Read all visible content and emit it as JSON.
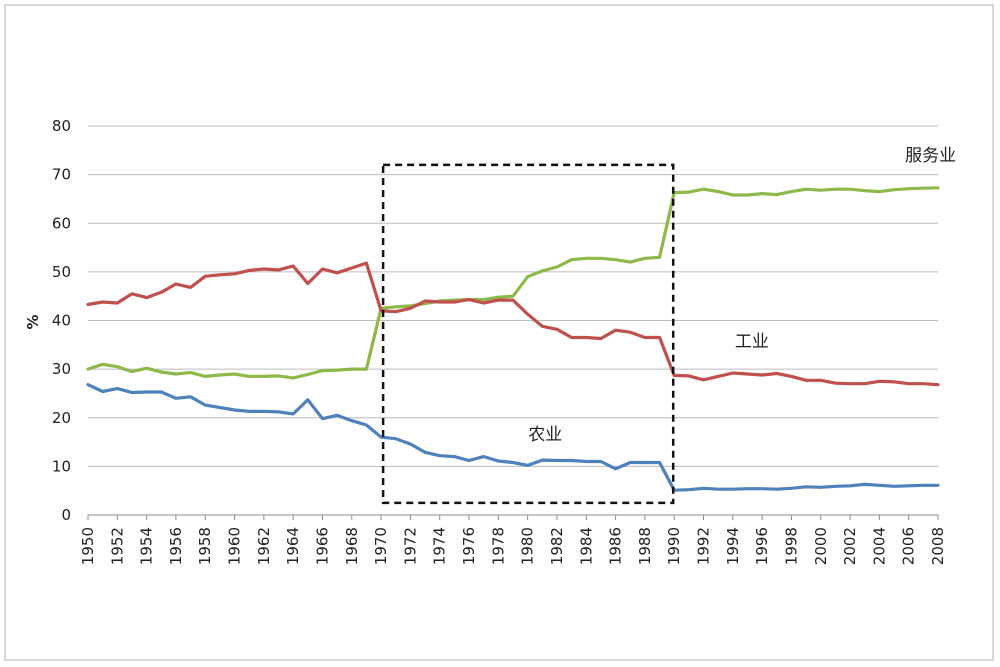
{
  "chart_data": {
    "type": "line",
    "ylabel": "%",
    "xlabel": "",
    "ylim": [
      0,
      80
    ],
    "yticks": [
      0,
      10,
      20,
      30,
      40,
      50,
      60,
      70,
      80
    ],
    "xlim": [
      1950,
      2008
    ],
    "xticks": [
      1950,
      1952,
      1954,
      1956,
      1958,
      1960,
      1962,
      1964,
      1966,
      1968,
      1970,
      1972,
      1974,
      1976,
      1978,
      1980,
      1982,
      1984,
      1986,
      1988,
      1990,
      1992,
      1994,
      1996,
      1998,
      2000,
      2002,
      2004,
      2006,
      2008
    ],
    "grid": true,
    "legend": "none",
    "highlight_box": {
      "x_from": 1970,
      "x_to": 1990,
      "y_from": 2.5,
      "y_to": 72
    },
    "x": [
      1950,
      1951,
      1952,
      1953,
      1954,
      1955,
      1956,
      1957,
      1958,
      1959,
      1960,
      1961,
      1962,
      1963,
      1964,
      1965,
      1966,
      1967,
      1968,
      1969,
      1970,
      1971,
      1972,
      1973,
      1974,
      1975,
      1976,
      1977,
      1978,
      1979,
      1980,
      1981,
      1982,
      1983,
      1984,
      1985,
      1986,
      1987,
      1988,
      1989,
      1990,
      1991,
      1992,
      1993,
      1994,
      1995,
      1996,
      1997,
      1998,
      1999,
      2000,
      2001,
      2002,
      2003,
      2004,
      2005,
      2006,
      2007,
      2008
    ],
    "series": [
      {
        "name": "服务业",
        "color": "#8db84a",
        "values": [
          30,
          31,
          30.5,
          29.5,
          30.2,
          29.4,
          29,
          29.3,
          28.5,
          28.8,
          29,
          28.5,
          28.5,
          28.6,
          28.2,
          28.9,
          29.7,
          29.8,
          30,
          30,
          42.5,
          42.8,
          43,
          43.5,
          44,
          44.2,
          44.3,
          44.3,
          44.8,
          45,
          49,
          50.2,
          51,
          52.5,
          52.8,
          52.8,
          52.5,
          52,
          52.8,
          53,
          66.3,
          66.4,
          67,
          66.5,
          65.8,
          65.8,
          66.1,
          65.9,
          66.5,
          67,
          66.8,
          67,
          67,
          66.7,
          66.5,
          66.9,
          67.1,
          67.2,
          67.3
        ]
      },
      {
        "name": "工业",
        "color": "#c0504d",
        "values": [
          43.3,
          43.8,
          43.6,
          45.5,
          44.7,
          45.8,
          47.5,
          46.8,
          49.1,
          49.4,
          49.6,
          50.3,
          50.6,
          50.4,
          51.2,
          47.6,
          50.6,
          49.8,
          50.8,
          51.8,
          42,
          41.8,
          42.5,
          44,
          43.8,
          43.8,
          44.3,
          43.6,
          44.2,
          44.2,
          41.3,
          38.8,
          38.2,
          36.5,
          36.5,
          36.3,
          38,
          37.6,
          36.5,
          36.5,
          28.7,
          28.6,
          27.8,
          28.5,
          29.2,
          29,
          28.8,
          29.1,
          28.5,
          27.7,
          27.7,
          27.1,
          27,
          27,
          27.5,
          27.4,
          27,
          27,
          26.8
        ]
      },
      {
        "name": "农业",
        "color": "#4f81bd",
        "values": [
          26.8,
          25.4,
          26,
          25.2,
          25.3,
          25.3,
          24,
          24.3,
          22.6,
          22.1,
          21.6,
          21.3,
          21.3,
          21.2,
          20.8,
          23.7,
          19.8,
          20.5,
          19.4,
          18.5,
          16,
          15.7,
          14.6,
          12.9,
          12.2,
          12,
          11.2,
          12,
          11.1,
          10.8,
          10.2,
          11.3,
          11.2,
          11.2,
          11,
          11,
          9.5,
          10.8,
          10.8,
          10.8,
          5.1,
          5.2,
          5.5,
          5.3,
          5.3,
          5.4,
          5.4,
          5.3,
          5.5,
          5.8,
          5.7,
          5.9,
          6,
          6.3,
          6.1,
          5.9,
          6,
          6.1,
          6.1
        ]
      }
    ],
    "annotations": [
      {
        "text": "服务业",
        "x": 2007.5,
        "y": 72.8
      },
      {
        "text": "工业",
        "x": 1995.3,
        "y": 34.6
      },
      {
        "text": "农业",
        "x": 1981.2,
        "y": 15.4
      }
    ]
  }
}
